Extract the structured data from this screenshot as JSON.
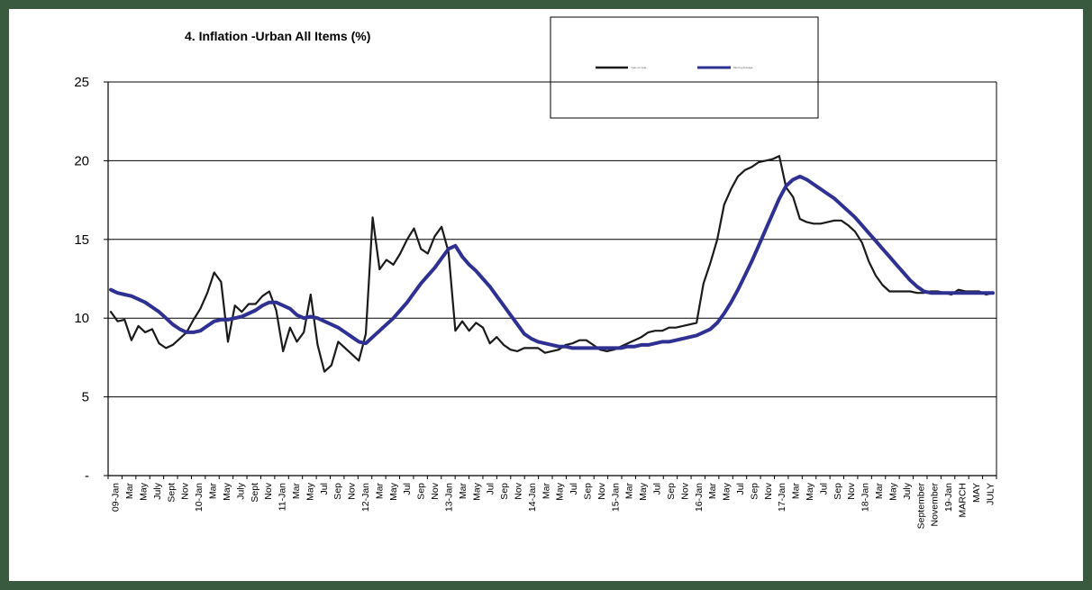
{
  "chart_data": {
    "type": "line",
    "title": "4. Inflation -Urban All Items (%)",
    "xlabel": "",
    "ylabel": "",
    "ylim": [
      0,
      25
    ],
    "yticks": [
      {
        "v": 25,
        "label": "25"
      },
      {
        "v": 20,
        "label": "20"
      },
      {
        "v": 15,
        "label": "15"
      },
      {
        "v": 10,
        "label": "10"
      },
      {
        "v": 5,
        "label": "5"
      },
      {
        "v": 0,
        "label": "-"
      }
    ],
    "grid": true,
    "legend_position": "top-right",
    "x_tick_labels": [
      "09-Jan",
      "Mar",
      "May",
      "July",
      "Sept",
      "Nov",
      "10-Jan",
      "Mar",
      "May",
      "July",
      "Sept",
      "Nov",
      "11-Jan",
      "Mar",
      "May",
      "Jul",
      "Sep",
      "Nov",
      "12-Jan",
      "Mar",
      "May",
      "Jul",
      "Sep",
      "Nov",
      "13-Jan",
      "Mar",
      "May",
      "Jul",
      "Sep",
      "Nov",
      "14-Jan",
      "Mar",
      "May",
      "Jul",
      "Sep",
      "Nov",
      "15-Jan",
      "Mar",
      "May",
      "Jul",
      "Sep",
      "Nov",
      "16-Jan",
      "Mar",
      "May",
      "Jul",
      "Sep",
      "Nov",
      "17-Jan",
      "Mar",
      "May",
      "Jul",
      "Sep",
      "Nov",
      "18-Jan",
      "Mar",
      "May",
      "July",
      "September",
      "November",
      "19-Jan",
      "MARCH",
      "MAY",
      "JULY"
    ],
    "series": [
      {
        "name": "Year-on-Year",
        "color": "#1a1a1a",
        "values": [
          10.4,
          9.8,
          9.9,
          8.6,
          9.5,
          9.1,
          9.3,
          8.4,
          8.1,
          8.3,
          8.7,
          9.1,
          9.9,
          10.6,
          11.6,
          12.9,
          12.3,
          8.5,
          10.8,
          10.4,
          10.9,
          10.9,
          11.4,
          11.7,
          10.5,
          7.9,
          9.4,
          8.5,
          9.1,
          11.5,
          8.3,
          6.6,
          7.0,
          8.5,
          8.1,
          7.7,
          7.3,
          9.0,
          16.4,
          13.1,
          13.7,
          13.4,
          14.1,
          15.0,
          15.7,
          14.4,
          14.1,
          15.2,
          15.8,
          14.2,
          9.2,
          9.8,
          9.2,
          9.7,
          9.4,
          8.4,
          8.8,
          8.3,
          8.0,
          7.9,
          8.1,
          8.1,
          8.1,
          7.8,
          7.9,
          8.0,
          8.3,
          8.4,
          8.6,
          8.6,
          8.3,
          8.0,
          7.9,
          8.0,
          8.2,
          8.4,
          8.6,
          8.8,
          9.1,
          9.2,
          9.2,
          9.4,
          9.4,
          9.5,
          9.6,
          9.7,
          12.2,
          13.5,
          15.0,
          17.2,
          18.2,
          19.0,
          19.4,
          19.6,
          19.9,
          20.0,
          20.1,
          20.3,
          18.3,
          17.7,
          16.3,
          16.1,
          16.0,
          16.0,
          16.1,
          16.2,
          16.2,
          15.9,
          15.5,
          14.8,
          13.6,
          12.7,
          12.1,
          11.7,
          11.7,
          11.7,
          11.7,
          11.6,
          11.6,
          11.7,
          11.7,
          11.6,
          11.5,
          11.8,
          11.7,
          11.7,
          11.7,
          11.5,
          11.6
        ]
      },
      {
        "name": "Moving Average",
        "color": "#2e3192",
        "values": [
          11.8,
          11.6,
          11.5,
          11.4,
          11.2,
          11.0,
          10.7,
          10.4,
          10.0,
          9.6,
          9.3,
          9.1,
          9.1,
          9.2,
          9.5,
          9.8,
          9.9,
          9.9,
          10.0,
          10.1,
          10.3,
          10.5,
          10.8,
          11.0,
          11.0,
          10.8,
          10.6,
          10.2,
          10.0,
          10.1,
          10.0,
          9.8,
          9.6,
          9.4,
          9.1,
          8.8,
          8.5,
          8.4,
          8.8,
          9.2,
          9.6,
          10.0,
          10.5,
          11.0,
          11.6,
          12.2,
          12.7,
          13.2,
          13.8,
          14.4,
          14.6,
          13.9,
          13.4,
          13.0,
          12.5,
          12.0,
          11.4,
          10.8,
          10.2,
          9.6,
          9.0,
          8.7,
          8.5,
          8.4,
          8.3,
          8.2,
          8.2,
          8.1,
          8.1,
          8.1,
          8.1,
          8.1,
          8.1,
          8.1,
          8.1,
          8.2,
          8.2,
          8.3,
          8.3,
          8.4,
          8.5,
          8.5,
          8.6,
          8.7,
          8.8,
          8.9,
          9.1,
          9.3,
          9.7,
          10.3,
          11.0,
          11.8,
          12.7,
          13.6,
          14.6,
          15.6,
          16.6,
          17.6,
          18.4,
          18.8,
          19.0,
          18.8,
          18.5,
          18.2,
          17.9,
          17.6,
          17.2,
          16.8,
          16.4,
          15.9,
          15.4,
          14.9,
          14.4,
          13.9,
          13.4,
          12.9,
          12.4,
          12.0,
          11.7,
          11.6,
          11.6,
          11.6,
          11.6,
          11.6,
          11.6,
          11.6,
          11.6,
          11.6,
          11.6
        ]
      }
    ]
  }
}
